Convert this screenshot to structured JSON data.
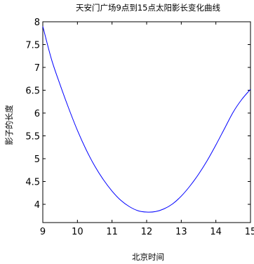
{
  "chart_data": {
    "type": "line",
    "title": "天安门广场9点到15点太阳影长变化曲线",
    "xlabel": "北京时间",
    "ylabel": "影子的长度",
    "xlim": [
      9,
      15
    ],
    "ylim": [
      3.6,
      8
    ],
    "xticks": [
      9,
      10,
      11,
      12,
      13,
      14,
      15
    ],
    "yticks": [
      4,
      4.5,
      5,
      5.5,
      6,
      6.5,
      7,
      7.5,
      8
    ],
    "ytick_labels": [
      "4",
      "4.5",
      "5",
      "5.5",
      "6",
      "6.5",
      "7",
      "7.5",
      "8"
    ],
    "grid": false,
    "series": [
      {
        "color": "#0000ff",
        "x": [
          9.0,
          9.25,
          9.5,
          9.75,
          10.0,
          10.25,
          10.5,
          10.75,
          11.0,
          11.25,
          11.5,
          11.75,
          12.0,
          12.25,
          12.5,
          12.75,
          13.0,
          13.25,
          13.5,
          13.75,
          14.0,
          14.25,
          14.5,
          14.75,
          15.0
        ],
        "y": [
          7.9,
          7.18,
          6.62,
          6.1,
          5.62,
          5.2,
          4.84,
          4.54,
          4.29,
          4.09,
          3.95,
          3.86,
          3.83,
          3.84,
          3.9,
          4.01,
          4.18,
          4.4,
          4.66,
          4.96,
          5.3,
          5.66,
          6.02,
          6.3,
          6.52
        ]
      }
    ]
  }
}
